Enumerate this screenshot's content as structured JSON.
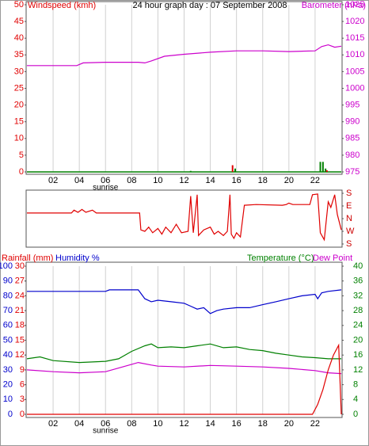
{
  "chart_data": [
    {
      "type": "combo",
      "title": "24 hour graph day : 07 September 2008",
      "xlim": [
        0,
        24
      ],
      "xticks": [
        {
          "value": 2,
          "label": "02"
        },
        {
          "value": 4,
          "label": "04"
        },
        {
          "value": 6,
          "label": "06"
        },
        {
          "value": 8,
          "label": "08"
        },
        10,
        12,
        14,
        16,
        18,
        20,
        22
      ],
      "grid": true,
      "annotations": [
        {
          "text": "sunrise",
          "x": 6
        }
      ],
      "axes": [
        {
          "label": "Windspeed (kmh)",
          "color": "#e00000",
          "side": "left",
          "lim": [
            0,
            50
          ],
          "ticks": [
            0,
            5,
            10,
            15,
            20,
            25,
            30,
            35,
            40,
            45,
            50
          ]
        },
        {
          "label": "Barometer (hPa)",
          "color": "#cc00cc",
          "side": "right",
          "lim": [
            975,
            1025
          ],
          "ticks": [
            975,
            980,
            985,
            990,
            995,
            1000,
            1005,
            1010,
            1015,
            1020,
            1025
          ]
        }
      ],
      "series": [
        {
          "type": "line",
          "axis": 1,
          "color": "#cc00cc",
          "x": [
            0,
            3.8,
            4.3,
            6,
            8.5,
            9,
            9.5,
            10.5,
            12,
            14,
            16,
            18,
            20,
            22,
            22.5,
            23,
            23.5,
            24
          ],
          "values": [
            1006.8,
            1006.8,
            1007.6,
            1007.8,
            1007.8,
            1007.6,
            1008.2,
            1009.6,
            1010.2,
            1010.8,
            1011.2,
            1011.2,
            1011.0,
            1011.2,
            1012.5,
            1013,
            1012.3,
            1012.6
          ]
        },
        {
          "type": "bar",
          "axis": 0,
          "color": "#008000",
          "x": [
            12.5,
            15.9,
            22.4,
            22.6,
            22.8
          ],
          "values": [
            0.3,
            1,
            3,
            3,
            1
          ]
        },
        {
          "type": "bar",
          "axis": 0,
          "color": "#e00000",
          "x": [
            15.7,
            22.9
          ],
          "values": [
            2,
            0.5
          ]
        }
      ]
    },
    {
      "type": "combo",
      "xlim": [
        0,
        24
      ],
      "grid": false,
      "axes": [
        {
          "color": "#cc0000",
          "side": "right",
          "lim": [
            -180,
            180
          ],
          "ticks": [
            {
              "value": 180,
              "label": "S"
            },
            {
              "value": 90,
              "label": "E"
            },
            {
              "value": 0,
              "label": "N"
            },
            {
              "value": -90,
              "label": "W"
            },
            {
              "value": -180,
              "label": "S"
            }
          ]
        }
      ],
      "series": [
        {
          "type": "line",
          "axis": 0,
          "color": "#e00000",
          "x": [
            0,
            3.4,
            3.6,
            3.9,
            4.2,
            4.5,
            5,
            5.3,
            8.6,
            8.7,
            9,
            9.3,
            9.6,
            10,
            10.3,
            10.6,
            11,
            11.4,
            11.8,
            12.3,
            12.5,
            12.7,
            13,
            13.1,
            13.5,
            14,
            14.3,
            14.6,
            15,
            15.3,
            15.5,
            15.6,
            15.8,
            16,
            16.3,
            16.6,
            17.5,
            19.5,
            19.8,
            20,
            20.3,
            21.6,
            21.8,
            22.2,
            22.4,
            22.7,
            23,
            23.2,
            23.5,
            23.7,
            24
          ],
          "values": [
            40,
            40,
            60,
            45,
            65,
            45,
            60,
            40,
            40,
            -80,
            -90,
            -60,
            -100,
            -70,
            -110,
            -60,
            -100,
            -40,
            -100,
            -90,
            160,
            -100,
            170,
            -120,
            -80,
            -60,
            -110,
            -90,
            -120,
            -90,
            170,
            -110,
            -140,
            -100,
            -130,
            95,
            100,
            95,
            100,
            110,
            100,
            100,
            170,
            175,
            -100,
            -150,
            120,
            80,
            170,
            30,
            -80
          ]
        }
      ]
    },
    {
      "type": "combo",
      "xlim": [
        0,
        24
      ],
      "xticks": [
        {
          "value": 2,
          "label": "02"
        },
        {
          "value": 4,
          "label": "04"
        },
        {
          "value": 6,
          "label": "06"
        },
        {
          "value": 8,
          "label": "08"
        },
        10,
        12,
        14,
        16,
        18,
        20,
        22
      ],
      "grid": true,
      "annotations": [
        {
          "text": "sunrise",
          "x": 6
        }
      ],
      "axes": [
        {
          "label": "Humidity %",
          "color": "#0000cc",
          "side": "left",
          "lim": [
            0,
            100
          ],
          "ticks": [
            0,
            10,
            20,
            30,
            40,
            50,
            60,
            70,
            80,
            90,
            100
          ]
        },
        {
          "label": "Rainfall (mm)",
          "color": "#e00000",
          "side": "left",
          "lim": [
            0,
            30
          ],
          "ticks": [
            0,
            3,
            6,
            9,
            12,
            15,
            18,
            21,
            24,
            27,
            30
          ]
        },
        {
          "label": "Temperature (°C)",
          "color": "#008000",
          "side": "right",
          "lim": [
            0,
            40
          ],
          "ticks": [
            0,
            4,
            8,
            12,
            16,
            20,
            24,
            28,
            32,
            36,
            40
          ]
        }
      ],
      "series": [
        {
          "type": "line",
          "axis": 0,
          "color": "#0000cc",
          "x": [
            0,
            3,
            6,
            6.3,
            8.5,
            9,
            9.5,
            10,
            11,
            12,
            12.5,
            13,
            13.5,
            14,
            14.5,
            15,
            16,
            17,
            18,
            19,
            20,
            21,
            22,
            22.2,
            22.5,
            23,
            24
          ],
          "values": [
            83,
            83,
            83,
            84,
            84,
            78,
            76,
            77,
            76,
            75,
            73,
            71,
            72,
            68,
            70,
            71,
            72,
            72,
            74,
            76,
            78,
            80,
            81,
            78,
            82,
            83,
            84
          ]
        },
        {
          "type": "line",
          "axis": 2,
          "color": "#008000",
          "x": [
            0,
            1,
            2,
            4,
            6,
            7,
            8,
            9,
            9.5,
            10,
            11,
            12,
            13,
            14,
            15,
            16,
            17,
            18,
            19,
            20,
            21,
            22,
            23,
            24
          ],
          "values": [
            15,
            15.5,
            14.5,
            14,
            14.3,
            15,
            17,
            18.5,
            19,
            18,
            18.2,
            18,
            18.5,
            19,
            18,
            18.2,
            17.5,
            17.2,
            16.5,
            16,
            15.5,
            15.3,
            15,
            15
          ]
        },
        {
          "type": "line",
          "axis": 2,
          "name": "Dew Point",
          "color": "#cc00cc",
          "x": [
            0,
            2,
            4,
            6,
            7,
            8,
            8.5,
            9.5,
            10,
            12,
            14,
            16,
            18,
            20,
            22,
            23,
            24
          ],
          "values": [
            12,
            11.5,
            11.2,
            11.5,
            12.5,
            13.5,
            14,
            13.3,
            13,
            12.8,
            13.2,
            13,
            12.8,
            12.4,
            11.8,
            11.2,
            11
          ]
        },
        {
          "type": "line",
          "axis": 1,
          "color": "#e00000",
          "x": [
            0,
            21.8,
            22.2,
            22.6,
            23,
            23.4,
            23.8,
            24
          ],
          "values": [
            0,
            0,
            2,
            5,
            9,
            12,
            14,
            0
          ]
        }
      ]
    }
  ]
}
